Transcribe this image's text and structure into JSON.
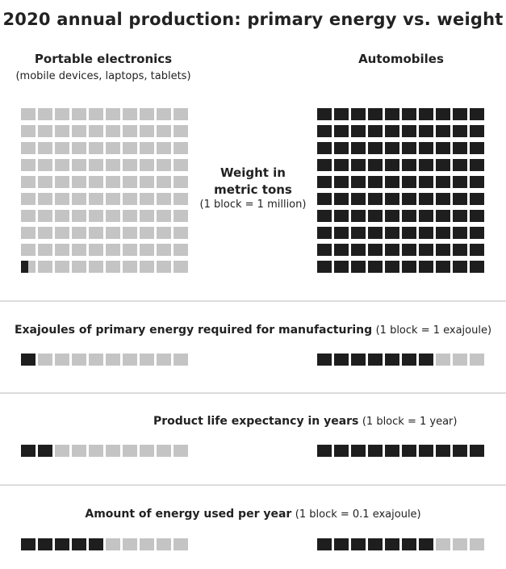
{
  "title": "2020 annual production: primary energy vs. weight",
  "left_heading": "Portable electronics",
  "left_subheading": "(mobile devices, laptops, tablets)",
  "right_heading": "Automobiles",
  "weight_label_line1": "Weight in",
  "weight_label_line2": "metric tons",
  "weight_note": "(1 block = 1 million)",
  "rows": [
    {
      "label": "Exajoules of primary energy required for manufacturing",
      "note": "(1 block = 1 exajoule)"
    },
    {
      "label": "Product life expectancy in years",
      "note": "(1 block = 1 year)"
    },
    {
      "label": "Amount of energy used per year",
      "note": "(1 block = 0.1 exajoule)"
    }
  ],
  "colors": {
    "filled": "#1e1e1e",
    "empty": "#c4c4c5",
    "divider": "#dcdcdc"
  },
  "chart_data": {
    "type": "waffle",
    "categories": [
      "Portable electronics",
      "Automobiles"
    ],
    "series": [
      {
        "name": "Weight in metric tons",
        "unit_per_block": "1 million",
        "grid_capacity": 100,
        "values": [
          0.5,
          100
        ]
      },
      {
        "name": "Exajoules of primary energy required for manufacturing",
        "unit_per_block": "1 exajoule",
        "grid_capacity": 10,
        "values": [
          1,
          7
        ]
      },
      {
        "name": "Product life expectancy in years",
        "unit_per_block": "1 year",
        "grid_capacity": 10,
        "values": [
          2,
          10
        ]
      },
      {
        "name": "Amount of energy used per year",
        "unit_per_block": "0.1 exajoule",
        "grid_capacity": 10,
        "values": [
          5,
          7
        ]
      }
    ]
  }
}
